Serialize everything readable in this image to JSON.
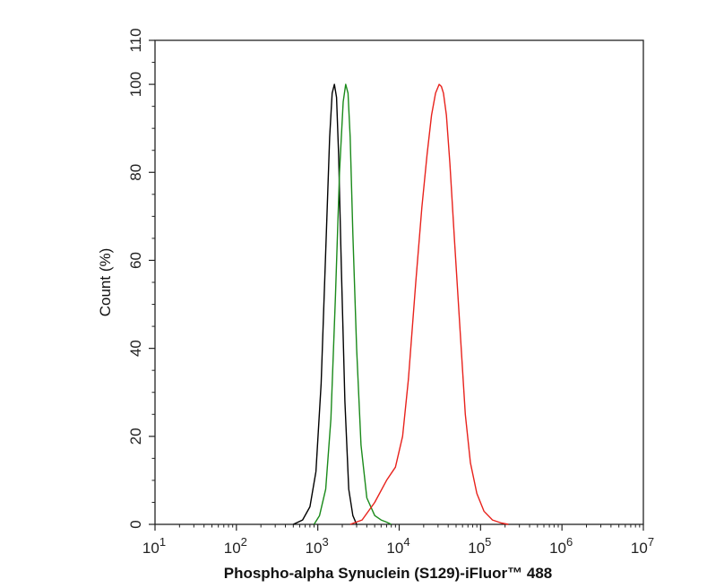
{
  "chart_data": {
    "type": "line",
    "title": "",
    "xlabel": "Phospho-alpha Synuclein (S129)-iFluor™ 488",
    "ylabel": "Count (%)",
    "x_scale": "log",
    "xlim": [
      10,
      10000000
    ],
    "ylim": [
      0,
      110
    ],
    "x_ticks": [
      {
        "value": 10,
        "base": "10",
        "exp": "1"
      },
      {
        "value": 100,
        "base": "10",
        "exp": "2"
      },
      {
        "value": 1000,
        "base": "10",
        "exp": "3"
      },
      {
        "value": 10000,
        "base": "10",
        "exp": "4"
      },
      {
        "value": 100000,
        "base": "10",
        "exp": "5"
      },
      {
        "value": 1000000,
        "base": "10",
        "exp": "6"
      },
      {
        "value": 10000000,
        "base": "10",
        "exp": "7"
      }
    ],
    "y_ticks": [
      0,
      20,
      40,
      60,
      80,
      100,
      110
    ],
    "grid": false,
    "legend": "none",
    "series": [
      {
        "color": "#000000",
        "x": [
          500,
          650,
          800,
          950,
          1100,
          1250,
          1400,
          1500,
          1600,
          1700,
          1800,
          1950,
          2150,
          2400,
          2700,
          3000
        ],
        "y": [
          0,
          1,
          4,
          12,
          32,
          62,
          88,
          98,
          100,
          97,
          84,
          58,
          28,
          8,
          2,
          0
        ]
      },
      {
        "color": "#1a8a1a",
        "x": [
          900,
          1050,
          1250,
          1450,
          1650,
          1850,
          2050,
          2200,
          2350,
          2500,
          2700,
          3000,
          3400,
          4000,
          5000,
          6000,
          7000,
          8000
        ],
        "y": [
          0,
          2,
          8,
          24,
          52,
          80,
          96,
          100,
          98,
          88,
          66,
          40,
          18,
          6,
          2,
          1,
          0.5,
          0
        ]
      },
      {
        "color": "#e8221c",
        "x": [
          2500,
          3500,
          5000,
          7000,
          9000,
          11000,
          13000,
          16000,
          19000,
          22000,
          25000,
          28000,
          31000,
          33000,
          35000,
          38000,
          42000,
          48000,
          56000,
          65000,
          75000,
          90000,
          110000,
          140000,
          180000,
          220000
        ],
        "y": [
          0,
          1,
          5,
          10,
          13,
          20,
          33,
          55,
          72,
          84,
          93,
          98,
          100,
          99.5,
          98,
          93,
          82,
          64,
          44,
          25,
          14,
          7,
          3,
          1,
          0.3,
          0
        ]
      }
    ]
  }
}
